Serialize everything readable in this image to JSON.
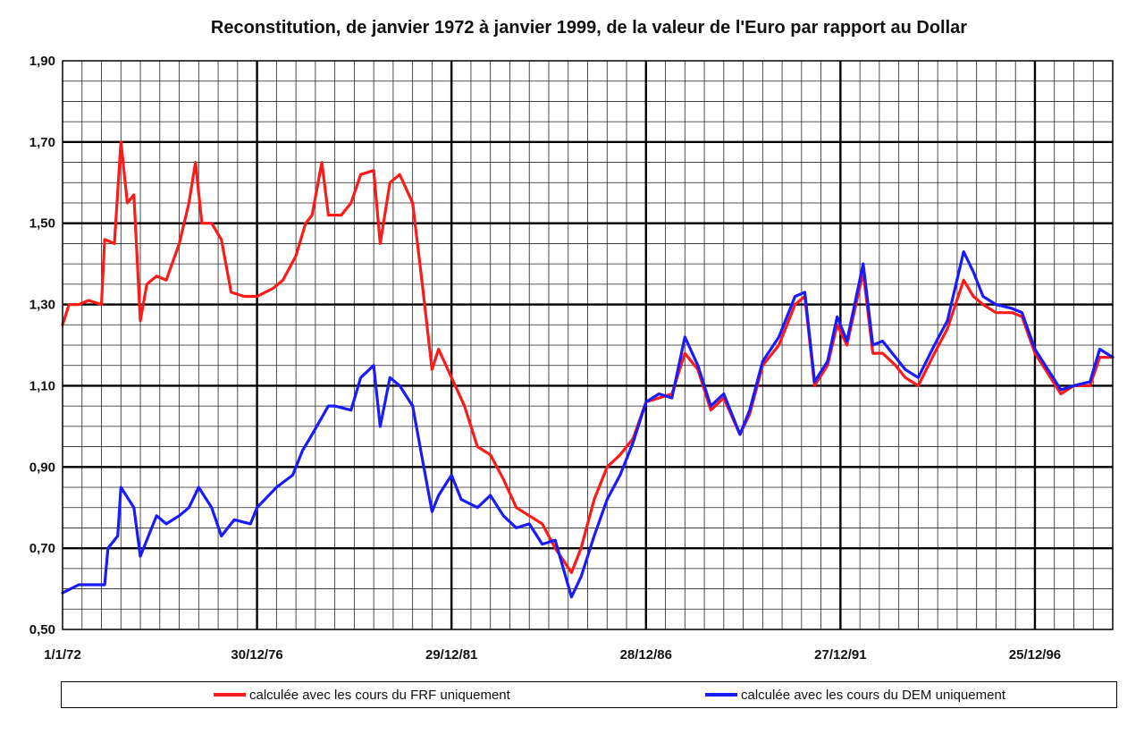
{
  "chart_data": {
    "type": "line",
    "title": "Reconstitution, de janvier 1972 à janvier 1999, de la valeur de l'Euro par rapport au Dollar",
    "xlabel": "",
    "ylabel": "",
    "x_range": [
      "1972-01-01",
      "1999-01-01"
    ],
    "ylim": [
      0.5,
      1.9
    ],
    "y_ticks": [
      "0,50",
      "0,70",
      "0,90",
      "1,10",
      "1,30",
      "1,50",
      "1,70",
      "1,90"
    ],
    "x_ticks": [
      "1/1/72",
      "30/12/76",
      "29/12/81",
      "28/12/86",
      "27/12/91",
      "25/12/96"
    ],
    "grid": true,
    "legend_position": "bottom",
    "series": [
      {
        "name": "calculée avec les cours du FRF uniquement",
        "color": "#ff1a1a",
        "points": [
          [
            "1972-01",
            1.25
          ],
          [
            "1972-03",
            1.3
          ],
          [
            "1972-06",
            1.3
          ],
          [
            "1972-09",
            1.31
          ],
          [
            "1973-01",
            1.3
          ],
          [
            "1973-02",
            1.46
          ],
          [
            "1973-05",
            1.45
          ],
          [
            "1973-07",
            1.7
          ],
          [
            "1973-09",
            1.55
          ],
          [
            "1973-11",
            1.57
          ],
          [
            "1974-01",
            1.26
          ],
          [
            "1974-03",
            1.35
          ],
          [
            "1974-06",
            1.37
          ],
          [
            "1974-09",
            1.36
          ],
          [
            "1975-01",
            1.45
          ],
          [
            "1975-04",
            1.55
          ],
          [
            "1975-06",
            1.65
          ],
          [
            "1975-08",
            1.5
          ],
          [
            "1975-11",
            1.5
          ],
          [
            "1976-02",
            1.46
          ],
          [
            "1976-05",
            1.33
          ],
          [
            "1976-09",
            1.32
          ],
          [
            "1977-01",
            1.32
          ],
          [
            "1977-06",
            1.34
          ],
          [
            "1977-09",
            1.36
          ],
          [
            "1978-01",
            1.42
          ],
          [
            "1978-04",
            1.5
          ],
          [
            "1978-06",
            1.52
          ],
          [
            "1978-09",
            1.65
          ],
          [
            "1978-11",
            1.52
          ],
          [
            "1979-03",
            1.52
          ],
          [
            "1979-06",
            1.55
          ],
          [
            "1979-09",
            1.62
          ],
          [
            "1980-01",
            1.63
          ],
          [
            "1980-03",
            1.45
          ],
          [
            "1980-06",
            1.6
          ],
          [
            "1980-09",
            1.62
          ],
          [
            "1981-01",
            1.55
          ],
          [
            "1981-04",
            1.35
          ],
          [
            "1981-07",
            1.14
          ],
          [
            "1981-09",
            1.19
          ],
          [
            "1982-01",
            1.12
          ],
          [
            "1982-05",
            1.05
          ],
          [
            "1982-09",
            0.95
          ],
          [
            "1983-01",
            0.93
          ],
          [
            "1983-05",
            0.87
          ],
          [
            "1983-09",
            0.8
          ],
          [
            "1984-01",
            0.78
          ],
          [
            "1984-05",
            0.76
          ],
          [
            "1984-09",
            0.7
          ],
          [
            "1985-02",
            0.64
          ],
          [
            "1985-05",
            0.7
          ],
          [
            "1985-09",
            0.82
          ],
          [
            "1986-01",
            0.9
          ],
          [
            "1986-05",
            0.93
          ],
          [
            "1986-09",
            0.97
          ],
          [
            "1987-01",
            1.06
          ],
          [
            "1987-05",
            1.07
          ],
          [
            "1987-09",
            1.08
          ],
          [
            "1988-01",
            1.18
          ],
          [
            "1988-05",
            1.14
          ],
          [
            "1988-09",
            1.04
          ],
          [
            "1989-01",
            1.07
          ],
          [
            "1989-06",
            0.98
          ],
          [
            "1989-09",
            1.03
          ],
          [
            "1990-01",
            1.15
          ],
          [
            "1990-06",
            1.2
          ],
          [
            "1990-11",
            1.3
          ],
          [
            "1991-02",
            1.32
          ],
          [
            "1991-05",
            1.1
          ],
          [
            "1991-09",
            1.15
          ],
          [
            "1991-12",
            1.25
          ],
          [
            "1992-03",
            1.2
          ],
          [
            "1992-08",
            1.38
          ],
          [
            "1992-11",
            1.18
          ],
          [
            "1993-02",
            1.18
          ],
          [
            "1993-06",
            1.15
          ],
          [
            "1993-09",
            1.12
          ],
          [
            "1994-01",
            1.1
          ],
          [
            "1994-06",
            1.18
          ],
          [
            "1994-10",
            1.24
          ],
          [
            "1995-03",
            1.36
          ],
          [
            "1995-06",
            1.32
          ],
          [
            "1995-09",
            1.3
          ],
          [
            "1996-01",
            1.28
          ],
          [
            "1996-06",
            1.28
          ],
          [
            "1996-09",
            1.27
          ],
          [
            "1997-01",
            1.18
          ],
          [
            "1997-05",
            1.13
          ],
          [
            "1997-09",
            1.08
          ],
          [
            "1998-01",
            1.1
          ],
          [
            "1998-06",
            1.1
          ],
          [
            "1998-09",
            1.17
          ],
          [
            "1999-01",
            1.17
          ]
        ]
      },
      {
        "name": "calculée avec les cours du DEM uniquement",
        "color": "#1a1aff",
        "points": [
          [
            "1972-01",
            0.59
          ],
          [
            "1972-06",
            0.61
          ],
          [
            "1972-12",
            0.61
          ],
          [
            "1973-02",
            0.61
          ],
          [
            "1973-03",
            0.7
          ],
          [
            "1973-06",
            0.73
          ],
          [
            "1973-07",
            0.85
          ],
          [
            "1973-11",
            0.8
          ],
          [
            "1974-01",
            0.68
          ],
          [
            "1974-06",
            0.78
          ],
          [
            "1974-09",
            0.76
          ],
          [
            "1975-01",
            0.78
          ],
          [
            "1975-04",
            0.8
          ],
          [
            "1975-07",
            0.85
          ],
          [
            "1975-11",
            0.8
          ],
          [
            "1976-02",
            0.73
          ],
          [
            "1976-06",
            0.77
          ],
          [
            "1976-11",
            0.76
          ],
          [
            "1977-01",
            0.8
          ],
          [
            "1977-07",
            0.85
          ],
          [
            "1977-12",
            0.88
          ],
          [
            "1978-03",
            0.94
          ],
          [
            "1978-06",
            0.98
          ],
          [
            "1978-11",
            1.05
          ],
          [
            "1979-01",
            1.05
          ],
          [
            "1979-06",
            1.04
          ],
          [
            "1979-09",
            1.12
          ],
          [
            "1980-01",
            1.15
          ],
          [
            "1980-03",
            1.0
          ],
          [
            "1980-06",
            1.12
          ],
          [
            "1980-09",
            1.1
          ],
          [
            "1981-01",
            1.05
          ],
          [
            "1981-04",
            0.92
          ],
          [
            "1981-07",
            0.79
          ],
          [
            "1981-09",
            0.83
          ],
          [
            "1982-01",
            0.88
          ],
          [
            "1982-04",
            0.82
          ],
          [
            "1982-09",
            0.8
          ],
          [
            "1983-01",
            0.83
          ],
          [
            "1983-05",
            0.78
          ],
          [
            "1983-09",
            0.75
          ],
          [
            "1984-01",
            0.76
          ],
          [
            "1984-05",
            0.71
          ],
          [
            "1984-09",
            0.72
          ],
          [
            "1985-02",
            0.58
          ],
          [
            "1985-05",
            0.63
          ],
          [
            "1985-09",
            0.73
          ],
          [
            "1986-01",
            0.82
          ],
          [
            "1986-05",
            0.88
          ],
          [
            "1986-09",
            0.96
          ],
          [
            "1987-01",
            1.06
          ],
          [
            "1987-05",
            1.08
          ],
          [
            "1987-09",
            1.07
          ],
          [
            "1988-01",
            1.22
          ],
          [
            "1988-05",
            1.15
          ],
          [
            "1988-09",
            1.05
          ],
          [
            "1989-01",
            1.08
          ],
          [
            "1989-06",
            0.98
          ],
          [
            "1989-09",
            1.04
          ],
          [
            "1990-01",
            1.16
          ],
          [
            "1990-06",
            1.22
          ],
          [
            "1990-11",
            1.32
          ],
          [
            "1991-02",
            1.33
          ],
          [
            "1991-05",
            1.11
          ],
          [
            "1991-09",
            1.16
          ],
          [
            "1991-12",
            1.27
          ],
          [
            "1992-03",
            1.21
          ],
          [
            "1992-08",
            1.4
          ],
          [
            "1992-11",
            1.2
          ],
          [
            "1993-02",
            1.21
          ],
          [
            "1993-06",
            1.17
          ],
          [
            "1993-09",
            1.14
          ],
          [
            "1994-01",
            1.12
          ],
          [
            "1994-06",
            1.2
          ],
          [
            "1994-10",
            1.26
          ],
          [
            "1995-03",
            1.43
          ],
          [
            "1995-06",
            1.38
          ],
          [
            "1995-09",
            1.32
          ],
          [
            "1996-01",
            1.3
          ],
          [
            "1996-06",
            1.29
          ],
          [
            "1996-09",
            1.28
          ],
          [
            "1997-01",
            1.19
          ],
          [
            "1997-05",
            1.14
          ],
          [
            "1997-09",
            1.09
          ],
          [
            "1998-01",
            1.1
          ],
          [
            "1998-06",
            1.11
          ],
          [
            "1998-09",
            1.19
          ],
          [
            "1999-01",
            1.17
          ]
        ]
      }
    ]
  }
}
